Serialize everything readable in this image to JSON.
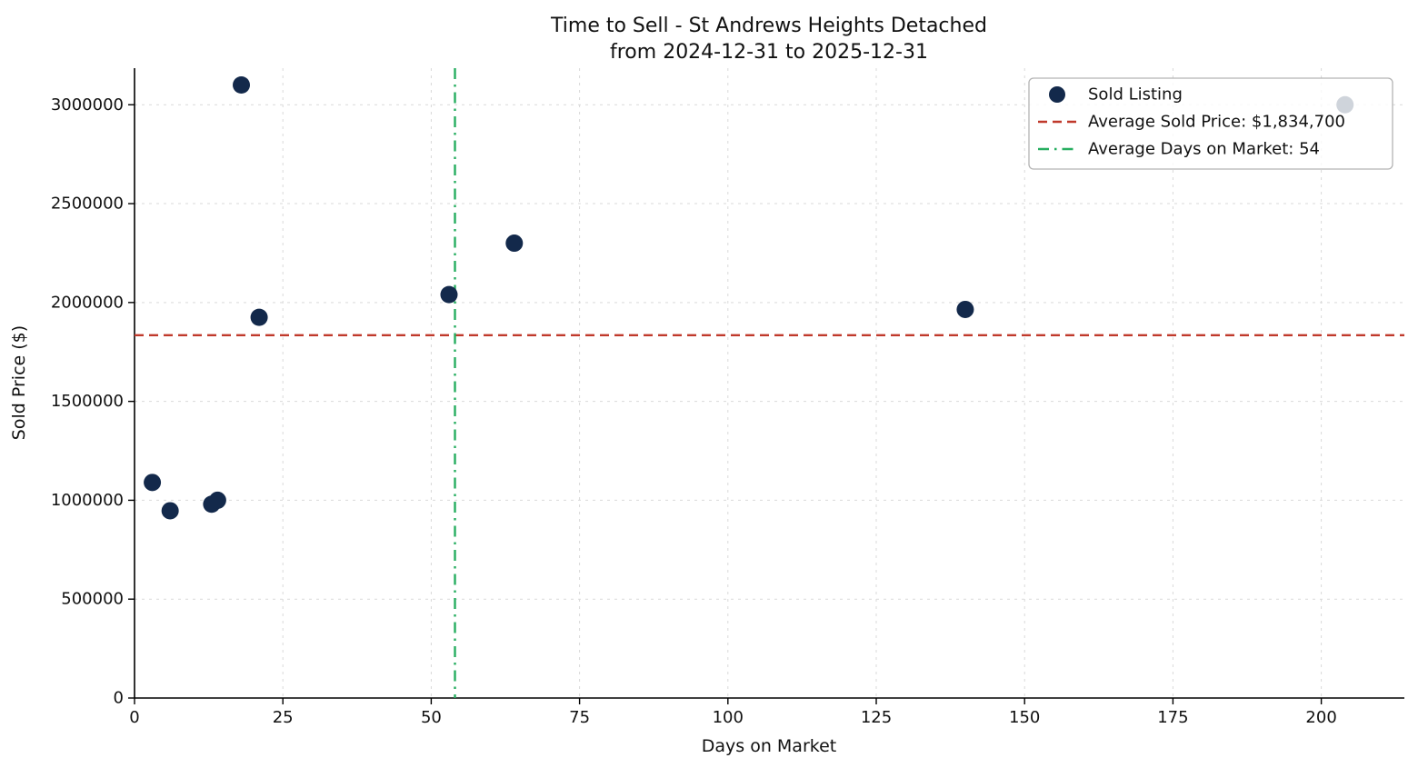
{
  "chart_data": {
    "type": "scatter",
    "title_lines": [
      "Time to Sell - St Andrews Heights Detached",
      "from 2024-12-31 to 2025-12-31"
    ],
    "xlabel": "Days on Market",
    "ylabel": "Sold Price ($)",
    "xlim": [
      0,
      214
    ],
    "ylim": [
      0,
      3185000
    ],
    "xticks": [
      0,
      25,
      50,
      75,
      100,
      125,
      150,
      175,
      200
    ],
    "yticks": [
      0,
      500000,
      1000000,
      1500000,
      2000000,
      2500000,
      3000000
    ],
    "grid": true,
    "legend_position": "upper right",
    "series": [
      {
        "name": "Sold Listing",
        "type": "scatter",
        "color": "#13294b",
        "points": [
          {
            "x": 3,
            "y": 1090000
          },
          {
            "x": 6,
            "y": 947000
          },
          {
            "x": 13,
            "y": 980000
          },
          {
            "x": 14,
            "y": 1000000
          },
          {
            "x": 18,
            "y": 3100000
          },
          {
            "x": 21,
            "y": 1925000
          },
          {
            "x": 53,
            "y": 2040000
          },
          {
            "x": 64,
            "y": 2300000
          },
          {
            "x": 140,
            "y": 1965000
          },
          {
            "x": 204,
            "y": 3000000
          }
        ]
      }
    ],
    "reference_lines": [
      {
        "name": "average-sold-price",
        "orientation": "horizontal",
        "value": 1834700,
        "label": "Average Sold Price: $1,834,700",
        "color": "#c0392b",
        "style": "dashed"
      },
      {
        "name": "average-days-on-market",
        "orientation": "vertical",
        "value": 54,
        "label": "Average Days on Market: 54",
        "color": "#27ae60",
        "style": "dashdot"
      }
    ],
    "legend_entries": [
      "Sold Listing",
      "Average Sold Price: $1,834,700",
      "Average Days on Market: 54"
    ],
    "colors": {
      "point": "#13294b",
      "avg_price_line": "#c0392b",
      "avg_dom_line": "#27ae60",
      "grid": "#d9d9d9",
      "spine": "#000000",
      "legend_border": "#b3b3b3"
    }
  }
}
